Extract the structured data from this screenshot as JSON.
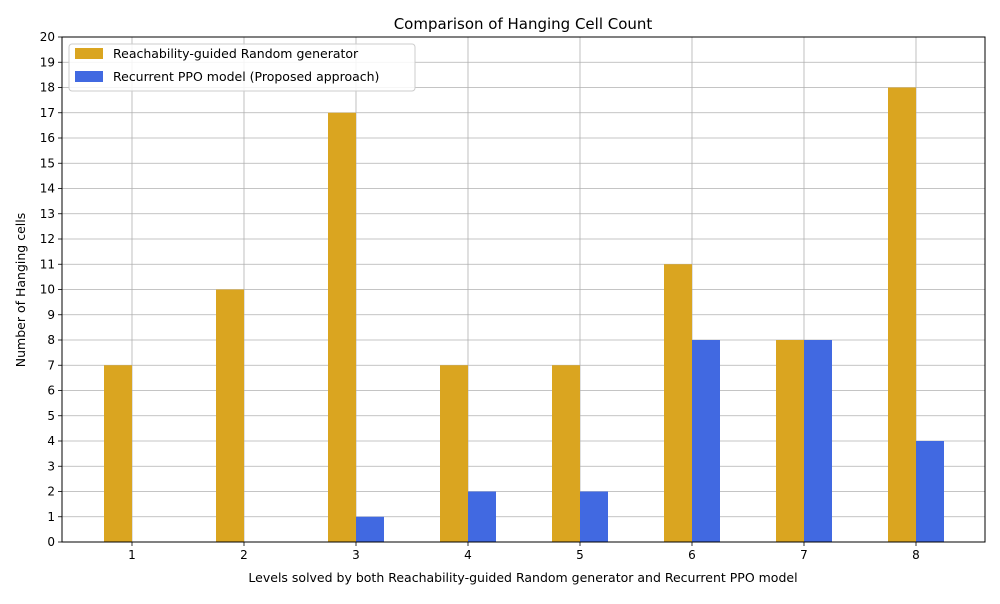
{
  "chart_data": {
    "type": "bar",
    "title": "Comparison of Hanging Cell Count",
    "xlabel": "Levels solved by both Reachability-guided Random generator and Recurrent PPO model",
    "ylabel": "Number of Hanging cells",
    "categories": [
      "1",
      "2",
      "3",
      "4",
      "5",
      "6",
      "7",
      "8"
    ],
    "series": [
      {
        "name": "Reachability-guided Random generator",
        "color": "#DAA520",
        "values": [
          7,
          10,
          17,
          7,
          7,
          11,
          8,
          18
        ]
      },
      {
        "name": "Recurrent PPO model (Proposed approach)",
        "color": "#4169E1",
        "values": [
          0,
          0,
          1,
          2,
          2,
          8,
          8,
          4
        ]
      }
    ],
    "ylim": [
      0,
      20
    ],
    "yticks": [
      0,
      1,
      2,
      3,
      4,
      5,
      6,
      7,
      8,
      9,
      10,
      11,
      12,
      13,
      14,
      15,
      16,
      17,
      18,
      19,
      20
    ],
    "grid": true,
    "legend_position": "top-left"
  }
}
